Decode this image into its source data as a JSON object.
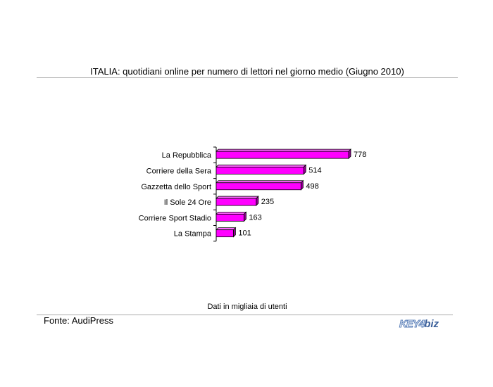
{
  "chart_data": {
    "type": "bar",
    "orientation": "horizontal",
    "title": "ITALIA: quotidiani online per numero di lettori nel giorno medio (Giugno 2010)",
    "categories": [
      "La Repubblica",
      "Corriere della Sera",
      "Gazzetta dello Sport",
      "Il Sole 24 Ore",
      "Corriere Sport Stadio",
      "La Stampa"
    ],
    "values": [
      778,
      514,
      498,
      235,
      163,
      101
    ],
    "xlabel": "Dati in migliaia di utenti",
    "ylabel": "",
    "xlim": [
      0,
      778
    ],
    "bar_color": "#ff00ff",
    "grid": false
  },
  "footer": {
    "source": "Fonte: AudiPress",
    "logo_key": "KEY4",
    "logo_biz": "biz"
  }
}
